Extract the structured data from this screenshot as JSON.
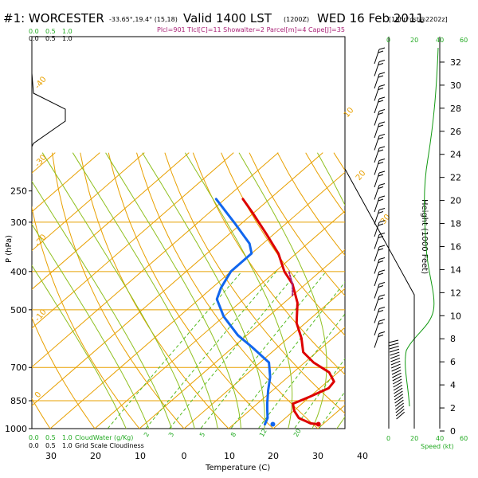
{
  "header": {
    "station": "#1: WORCESTER",
    "coords": "-33.65°,19.4° (15,18)",
    "valid": "Valid 1400 LST",
    "utc": "(1200Z)",
    "date": "WED 16 Feb 2011",
    "forecast": "[18hrFcst@2202z]",
    "indices": "Plcl=901 Tlcl[C]=11 Showalter=2 Parcel[m]=4 Cape[J]=35"
  },
  "left_scales": {
    "cloud_water_ticks": [
      "0.0",
      "0.5",
      "1.0"
    ],
    "cloud_water_label": "CloudWater (g/Kg)",
    "grid_cloud_ticks": [
      "0.0",
      "0.5",
      "1.0"
    ],
    "grid_cloud_label": "Grid Scale Cloudiness"
  },
  "wind_speed_axis": {
    "ticks_top": [
      "0",
      "20",
      "40",
      "60"
    ],
    "ticks_bottom": [
      "0",
      "20",
      "40",
      "60"
    ],
    "label": "Speed (kt)"
  },
  "chart_data": {
    "type": "line",
    "title": "#1: WORCESTER",
    "xlabel": "Temperature (C)",
    "ylabel": "P (hPa)",
    "y2label": "Height (1000 Feet)",
    "x_ticks": [
      "30",
      "20",
      "10",
      "0",
      "10",
      "20",
      "30",
      "40"
    ],
    "pressure_ticks": [
      250,
      300,
      400,
      500,
      700,
      850,
      1000
    ],
    "height_ticks": [
      0,
      2,
      4,
      6,
      8,
      10,
      12,
      14,
      16,
      18,
      20,
      22,
      24,
      26,
      28,
      30,
      32
    ],
    "ylim": [
      1000,
      250
    ],
    "xlim": [
      -35,
      45
    ],
    "isotherm_labels": [
      "-40",
      "-30",
      "-20",
      "-10",
      "0",
      "10",
      "20",
      "30"
    ],
    "mixing_ratio_labels": [
      "2",
      "3",
      "5",
      "8",
      "12",
      "20"
    ],
    "series": [
      {
        "name": "Temperature",
        "color": "#dd0000",
        "points": [
          [
            29,
            975
          ],
          [
            27,
            970
          ],
          [
            23,
            940
          ],
          [
            20,
            900
          ],
          [
            18,
            865
          ],
          [
            20,
            830
          ],
          [
            22,
            790
          ],
          [
            21.5,
            760
          ],
          [
            18,
            720
          ],
          [
            12,
            680
          ],
          [
            7,
            640
          ],
          [
            3,
            590
          ],
          [
            -2,
            540
          ],
          [
            -7,
            480
          ],
          [
            -13,
            430
          ],
          [
            -18,
            400
          ],
          [
            -24,
            360
          ],
          [
            -32,
            320
          ],
          [
            -40,
            285
          ],
          [
            -46,
            262
          ]
        ]
      },
      {
        "name": "Dewpoint",
        "color": "#1166ee",
        "points": [
          [
            17,
            975
          ],
          [
            16,
            940
          ],
          [
            14,
            900
          ],
          [
            12,
            860
          ],
          [
            9,
            800
          ],
          [
            6,
            740
          ],
          [
            2,
            680
          ],
          [
            -6,
            620
          ],
          [
            -12,
            580
          ],
          [
            -20,
            520
          ],
          [
            -26,
            470
          ],
          [
            -28,
            440
          ],
          [
            -30,
            400
          ],
          [
            -30,
            360
          ],
          [
            -33,
            340
          ],
          [
            -42,
            300
          ],
          [
            -52,
            262
          ]
        ]
      },
      {
        "name": "Parcel",
        "color": "#aa2277",
        "points": [
          [
            -10,
            460
          ],
          [
            -13,
            430
          ],
          [
            -17,
            400
          ]
        ]
      }
    ]
  }
}
